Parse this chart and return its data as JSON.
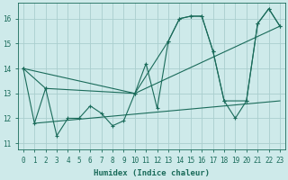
{
  "xlabel": "Humidex (Indice chaleur)",
  "bg_color": "#ceeaea",
  "grid_color": "#aacece",
  "line_color": "#1a6b5a",
  "xlim": [
    -0.5,
    23.5
  ],
  "ylim": [
    10.75,
    16.65
  ],
  "yticks": [
    11,
    12,
    13,
    14,
    15,
    16
  ],
  "xticks": [
    0,
    1,
    2,
    3,
    4,
    5,
    6,
    7,
    8,
    9,
    10,
    11,
    12,
    13,
    14,
    15,
    16,
    17,
    18,
    19,
    20,
    21,
    22,
    23
  ],
  "line1_x": [
    0,
    1,
    2,
    3,
    4,
    5,
    6,
    7,
    8,
    9,
    10,
    11,
    12,
    13,
    14,
    15,
    16,
    17,
    18,
    19,
    20,
    21,
    22,
    23
  ],
  "line1_y": [
    14.0,
    11.8,
    13.2,
    11.3,
    12.0,
    12.0,
    12.5,
    12.2,
    11.7,
    11.9,
    13.0,
    14.2,
    12.4,
    15.1,
    16.0,
    16.1,
    16.1,
    14.7,
    12.7,
    12.0,
    12.7,
    15.8,
    16.4,
    15.7
  ],
  "line2_x": [
    0,
    2,
    10,
    13,
    14,
    15,
    16,
    17,
    18,
    20,
    21,
    22,
    23
  ],
  "line2_y": [
    14.0,
    13.2,
    13.0,
    15.1,
    16.0,
    16.1,
    16.1,
    14.7,
    12.7,
    12.7,
    15.8,
    16.4,
    15.7
  ],
  "line3_x": [
    0,
    10,
    23
  ],
  "line3_y": [
    14.0,
    13.0,
    15.7
  ],
  "line4_x": [
    1,
    23
  ],
  "line4_y": [
    11.8,
    12.7
  ]
}
